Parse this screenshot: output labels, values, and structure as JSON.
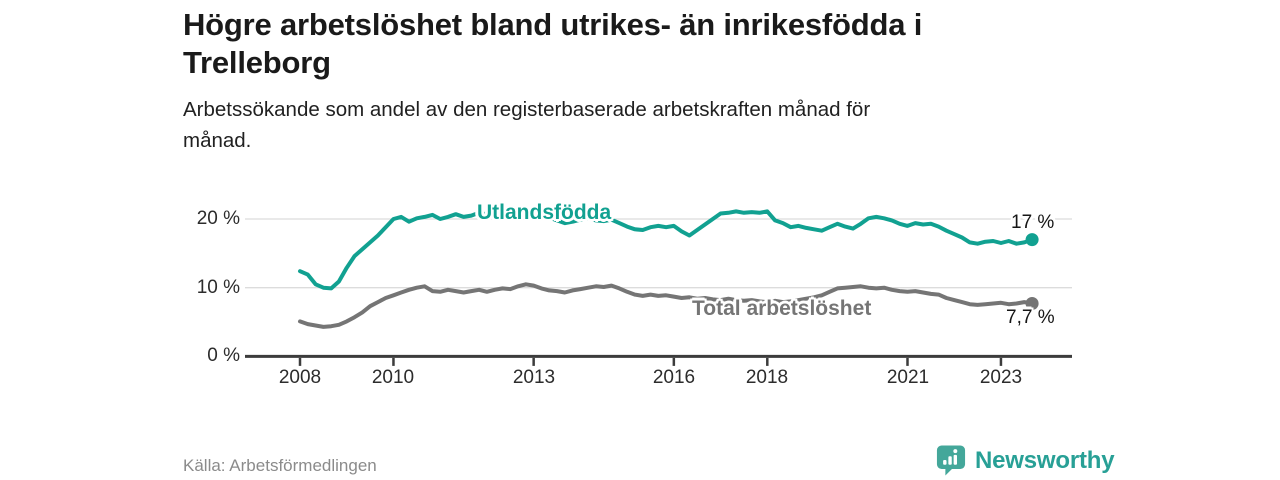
{
  "header": {
    "title_lines": [
      "Högre arbetslöshet bland utrikes- än inrikesfödda i",
      "Trelleborg"
    ],
    "subtitle_lines": [
      "Arbetssökande som andel av den registerbaserade arbetskraften månad för",
      "månad."
    ]
  },
  "footer": {
    "source": "Källa: Arbetsförmedlingen",
    "logo_text": "Newsworthy",
    "logo_icon": "bar-chart-speech-bubble-icon"
  },
  "colors": {
    "series_foreign": "#11a191",
    "series_total": "#757575",
    "axis": "#3c3c3c",
    "grid": "#dcdcdc",
    "brand_icon": "#44a79a",
    "brand_text": "#28a096"
  },
  "chart_data": {
    "type": "line",
    "title": "Högre arbetslöshet bland utrikes- än inrikesfödda i Trelleborg",
    "subtitle": "Arbetssökande som andel av den registerbaserade arbetskraften månad för månad.",
    "unit": "%",
    "grid": "horizontal",
    "x_axis": {
      "start": 2008,
      "step_years": 0.166667,
      "end": 2023.67,
      "ticks": [
        "2008",
        "2010",
        "2013",
        "2016",
        "2018",
        "2021",
        "2023"
      ]
    },
    "y_axis": {
      "min": 0,
      "max": 23,
      "ticks": [
        "0 %",
        "10 %",
        "20 %"
      ]
    },
    "series": [
      {
        "name": "Utlandsfödda",
        "color": "#11a191",
        "end_label": "17 %",
        "end_value": 17,
        "values": [
          12.4,
          11.9,
          10.5,
          10.0,
          9.9,
          10.9,
          12.9,
          14.6,
          15.6,
          16.6,
          17.6,
          18.8,
          20.0,
          20.3,
          19.6,
          20.1,
          20.3,
          20.6,
          20.0,
          20.3,
          20.7,
          20.3,
          20.5,
          20.9,
          20.7,
          20.3,
          20.5,
          20.6,
          20.8,
          20.6,
          20.4,
          20.5,
          20.2,
          19.8,
          19.4,
          19.6,
          19.9,
          20.1,
          19.8,
          19.7,
          19.9,
          19.4,
          18.9,
          18.5,
          18.4,
          18.8,
          19.0,
          18.8,
          19.0,
          18.2,
          17.6,
          18.4,
          19.2,
          20.0,
          20.8,
          20.9,
          21.1,
          20.9,
          21.0,
          20.9,
          21.1,
          19.8,
          19.4,
          18.8,
          19.0,
          18.7,
          18.5,
          18.3,
          18.8,
          19.3,
          18.9,
          18.6,
          19.3,
          20.1,
          20.3,
          20.1,
          19.8,
          19.3,
          19.0,
          19.4,
          19.2,
          19.3,
          18.9,
          18.3,
          17.8,
          17.3,
          16.6,
          16.4,
          16.7,
          16.8,
          16.5,
          16.8,
          16.4,
          16.6,
          17.0
        ]
      },
      {
        "name": "Total arbetslöshet",
        "color": "#757575",
        "end_label": "7,7 %",
        "end_value": 7.7,
        "values": [
          5.1,
          4.7,
          4.5,
          4.3,
          4.4,
          4.6,
          5.1,
          5.7,
          6.4,
          7.3,
          7.9,
          8.5,
          8.9,
          9.3,
          9.7,
          10.0,
          10.2,
          9.5,
          9.4,
          9.7,
          9.5,
          9.3,
          9.5,
          9.7,
          9.4,
          9.7,
          9.9,
          9.8,
          10.2,
          10.5,
          10.3,
          9.9,
          9.6,
          9.5,
          9.3,
          9.6,
          9.8,
          10.0,
          10.2,
          10.1,
          10.3,
          9.9,
          9.4,
          9.0,
          8.8,
          9.0,
          8.8,
          8.9,
          8.7,
          8.5,
          8.6,
          8.4,
          8.5,
          8.3,
          8.2,
          8.4,
          8.2,
          8.1,
          8.2,
          8.0,
          7.9,
          8.1,
          7.9,
          8.0,
          8.2,
          8.4,
          8.6,
          8.9,
          9.4,
          9.9,
          10.0,
          10.1,
          10.2,
          10.0,
          9.9,
          10.0,
          9.7,
          9.5,
          9.4,
          9.5,
          9.3,
          9.1,
          9.0,
          8.5,
          8.2,
          7.9,
          7.6,
          7.5,
          7.6,
          7.7,
          7.8,
          7.6,
          7.7,
          7.9,
          7.7
        ]
      }
    ]
  }
}
